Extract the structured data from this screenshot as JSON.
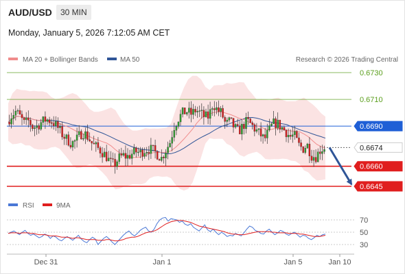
{
  "header": {
    "symbol": "AUD/USD",
    "timeframe": "30 MIN",
    "timestamp": "Monday, January 5, 2026 7:12:05 AM CET"
  },
  "legend": {
    "ma20": {
      "label": "MA 20 + Bollinger Bands",
      "color": "#f08c8c"
    },
    "ma50": {
      "label": "MA 50",
      "color": "#2f5597"
    },
    "credit": "Research © 2026 Trading Central"
  },
  "rsi_legend": {
    "rsi": {
      "label": "RSI",
      "color": "#4a78d6"
    },
    "ma9": {
      "label": "9MA",
      "color": "#e01e1e"
    }
  },
  "chart_data": {
    "type": "line",
    "title": "",
    "instrument": "AUD/USD",
    "interval": "30 MIN",
    "price_range": [
      0.664,
      0.6735
    ],
    "current_price": 0.6674,
    "levels": [
      {
        "value": 0.673,
        "label": "0.6730",
        "kind": "resistance",
        "color": "#5a9e1c"
      },
      {
        "value": 0.671,
        "label": "0.6710",
        "kind": "resistance",
        "color": "#5a9e1c"
      },
      {
        "value": 0.669,
        "label": "0.6690",
        "kind": "pivot",
        "color": "#1f5fd6"
      },
      {
        "value": 0.6674,
        "label": "0.6674",
        "kind": "last",
        "color": "#222222"
      },
      {
        "value": 0.666,
        "label": "0.6660",
        "kind": "support",
        "color": "#e01e1e"
      },
      {
        "value": 0.6645,
        "label": "0.6645",
        "kind": "support",
        "color": "#e01e1e"
      }
    ],
    "x_tick_labels": [
      "Dec 31",
      "Jan 1",
      "Jan 5",
      "Jan 10"
    ],
    "price_path": [
      0.6693,
      0.6698,
      0.6701,
      0.6697,
      0.6692,
      0.6694,
      0.6689,
      0.669,
      0.6693,
      0.6695,
      0.6694,
      0.6692,
      0.6688,
      0.6683,
      0.668,
      0.6677,
      0.6679,
      0.6684,
      0.6685,
      0.6681,
      0.6676,
      0.6674,
      0.6671,
      0.6668,
      0.6663,
      0.6661,
      0.6666,
      0.6668,
      0.6667,
      0.6669,
      0.6671,
      0.667,
      0.6672,
      0.6673,
      0.6672,
      0.6669,
      0.6666,
      0.6672,
      0.6678,
      0.669,
      0.6696,
      0.67,
      0.6701,
      0.6699,
      0.6702,
      0.67,
      0.6697,
      0.6697,
      0.6707,
      0.6702,
      0.67,
      0.6691,
      0.6694,
      0.6689,
      0.6686,
      0.669,
      0.6694,
      0.6691,
      0.6687,
      0.6684,
      0.668,
      0.6686,
      0.6692,
      0.6692,
      0.6689,
      0.6686,
      0.6682,
      0.6683,
      0.6676,
      0.6673,
      0.6676,
      0.6668,
      0.6667,
      0.6672,
      0.6674
    ],
    "projection": {
      "from": 0.6674,
      "to": 0.6645
    },
    "rsi": {
      "levels": [
        70,
        50,
        30
      ],
      "range": [
        20,
        80
      ],
      "rsi_values": [
        48,
        50,
        52,
        49,
        46,
        50,
        53,
        48,
        45,
        47,
        44,
        41,
        43,
        47,
        45,
        40,
        44,
        42,
        38,
        36,
        40,
        43,
        40,
        37,
        41,
        45,
        39,
        35,
        33,
        38,
        42,
        39,
        30,
        35,
        40,
        43,
        39,
        34,
        30,
        35,
        40,
        45,
        49,
        52,
        47,
        44,
        48,
        53,
        56,
        58,
        52,
        50,
        55,
        64,
        70,
        73,
        74,
        68,
        72,
        71,
        70,
        66,
        68,
        63,
        61,
        64,
        58,
        55,
        52,
        57,
        62,
        54,
        51,
        55,
        50,
        46,
        50,
        47,
        43,
        45,
        44,
        48,
        46,
        44,
        49,
        55,
        60,
        58,
        53,
        51,
        48,
        47,
        52,
        55,
        50,
        46,
        49,
        53,
        51,
        47,
        45,
        48,
        50,
        46,
        42,
        45,
        44,
        40,
        38,
        41,
        45,
        43,
        46,
        47
      ],
      "ma9_values": [
        48,
        49,
        49,
        49,
        48,
        49,
        49,
        49,
        48,
        48,
        47,
        46,
        46,
        46,
        45,
        44,
        44,
        44,
        43,
        42,
        42,
        42,
        41,
        40,
        41,
        41,
        40,
        39,
        38,
        38,
        38,
        38,
        37,
        37,
        37,
        38,
        38,
        37,
        36,
        36,
        37,
        38,
        40,
        41,
        42,
        42,
        43,
        45,
        47,
        49,
        50,
        51,
        52,
        54,
        57,
        60,
        63,
        65,
        67,
        68,
        69,
        69,
        69,
        68,
        67,
        66,
        64,
        62,
        60,
        59,
        58,
        57,
        56,
        55,
        54,
        53,
        52,
        51,
        49,
        48,
        47,
        47,
        46,
        46,
        46,
        47,
        48,
        49,
        50,
        51,
        51,
        51,
        51,
        51,
        50,
        50,
        49,
        49,
        49,
        49,
        48,
        48,
        48,
        48,
        47,
        47,
        46,
        45,
        44,
        43,
        43,
        43,
        44,
        45
      ]
    }
  }
}
